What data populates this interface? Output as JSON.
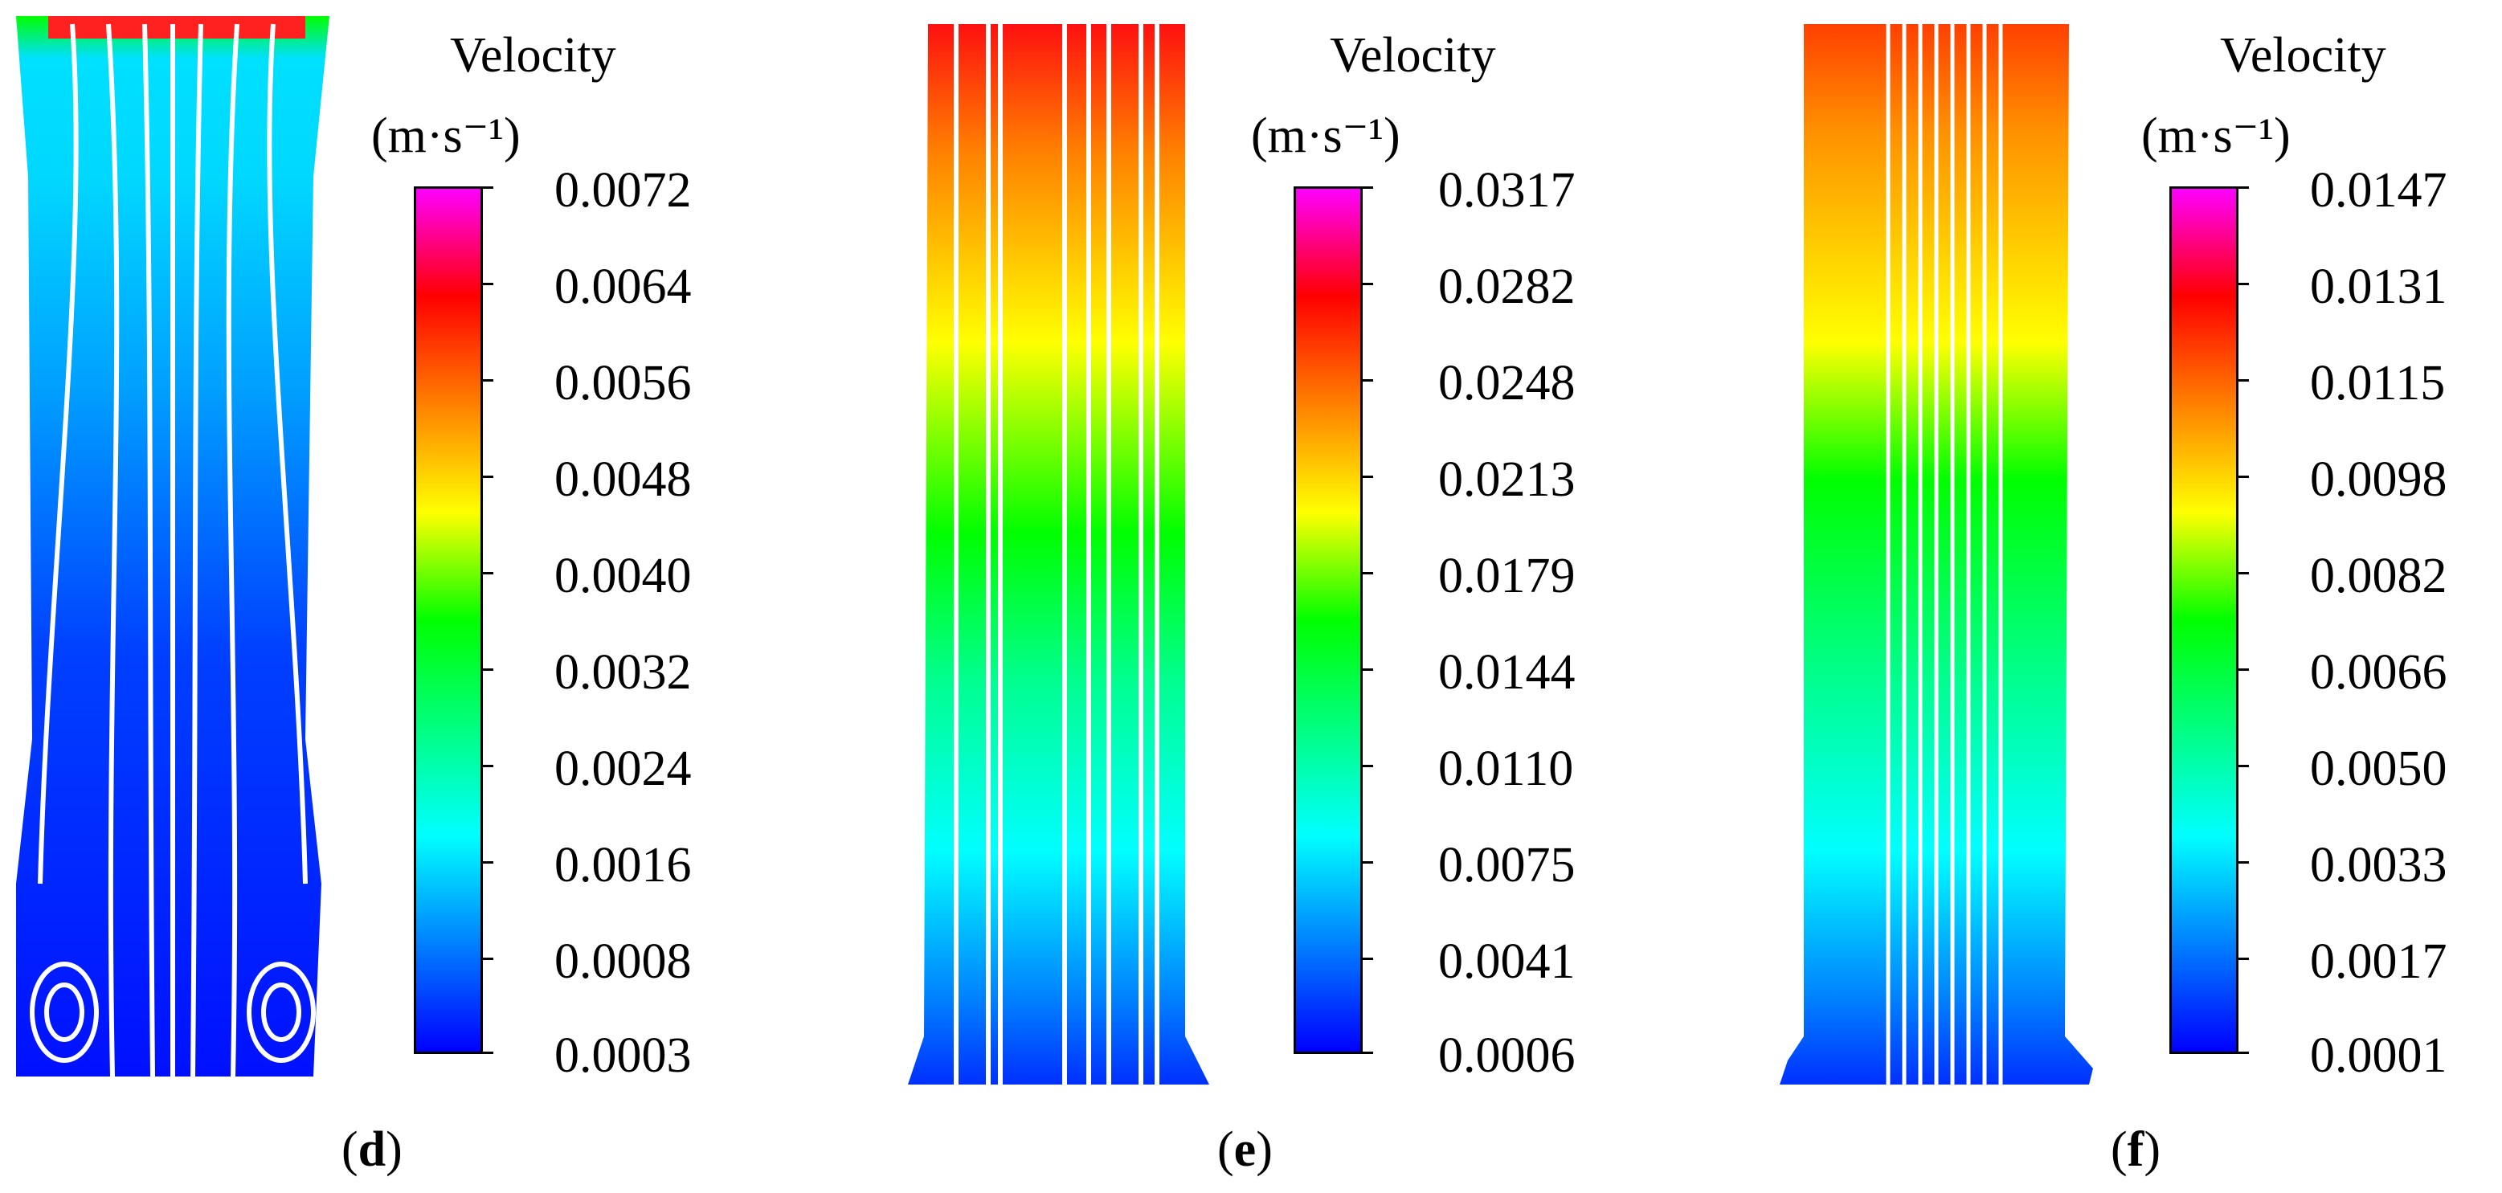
{
  "panels": [
    {
      "id": "d",
      "legend_title_line1": "Velocity",
      "legend_unit": "(m·s⁻¹)",
      "ticks": [
        "0.0072",
        "0.0064",
        "0.0056",
        "0.0048",
        "0.0040",
        "0.0032",
        "0.0024",
        "0.0016",
        "0.0008",
        "0.0003"
      ],
      "caption_open": "(",
      "caption_letter": "d",
      "caption_close": ")"
    },
    {
      "id": "e",
      "legend_title_line1": "Velocity",
      "legend_unit": "(m·s⁻¹)",
      "ticks": [
        "0.0317",
        "0.0282",
        "0.0248",
        "0.0213",
        "0.0179",
        "0.0144",
        "0.0110",
        "0.0075",
        "0.0041",
        "0.0006"
      ],
      "caption_open": "(",
      "caption_letter": "e",
      "caption_close": ")"
    },
    {
      "id": "f",
      "legend_title_line1": "Velocity",
      "legend_unit": "(m·s⁻¹)",
      "ticks": [
        "0.0147",
        "0.0131",
        "0.0115",
        "0.0098",
        "0.0082",
        "0.0066",
        "0.0050",
        "0.0033",
        "0.0017",
        "0.0001"
      ],
      "caption_open": "(",
      "caption_letter": "f",
      "caption_close": ")"
    }
  ],
  "colors": {
    "colormap": [
      "#0000ff",
      "#0080ff",
      "#00ffff",
      "#00ff80",
      "#00ff00",
      "#ffff00",
      "#ff8000",
      "#ff0000",
      "#ff00ff"
    ],
    "streamline": "#ffffff"
  }
}
